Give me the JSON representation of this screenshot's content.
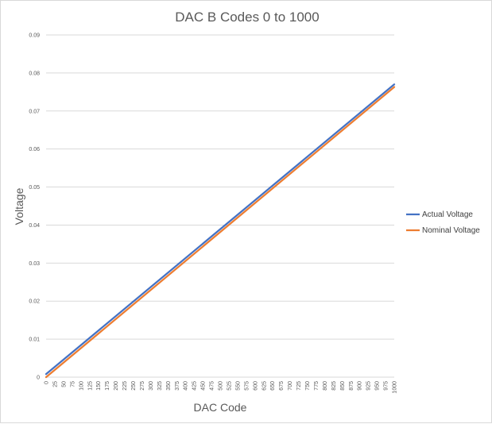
{
  "chart_data": {
    "type": "line",
    "title": "DAC B Codes 0 to 1000",
    "xlabel": "DAC Code",
    "ylabel": "Voltage",
    "x_ticks": [
      0,
      25,
      50,
      75,
      100,
      125,
      150,
      175,
      200,
      225,
      250,
      275,
      300,
      325,
      350,
      375,
      400,
      425,
      450,
      475,
      500,
      525,
      550,
      575,
      600,
      625,
      650,
      675,
      700,
      725,
      750,
      775,
      800,
      825,
      850,
      875,
      900,
      925,
      950,
      975,
      1000
    ],
    "y_ticks": [
      "0",
      "0.01",
      "0.02",
      "0.03",
      "0.04",
      "0.05",
      "0.06",
      "0.07",
      "0.08",
      "0.09"
    ],
    "xlim": [
      0,
      1000
    ],
    "ylim": [
      0,
      0.09
    ],
    "grid": true,
    "legend_position": "right",
    "series": [
      {
        "name": "Actual Voltage",
        "color": "#4472c4",
        "x": [
          0,
          1000
        ],
        "y": [
          0.0008,
          0.077
        ]
      },
      {
        "name": "Nominal Voltage",
        "color": "#ed7d31",
        "x": [
          0,
          1000
        ],
        "y": [
          0.0,
          0.0763
        ]
      }
    ]
  }
}
